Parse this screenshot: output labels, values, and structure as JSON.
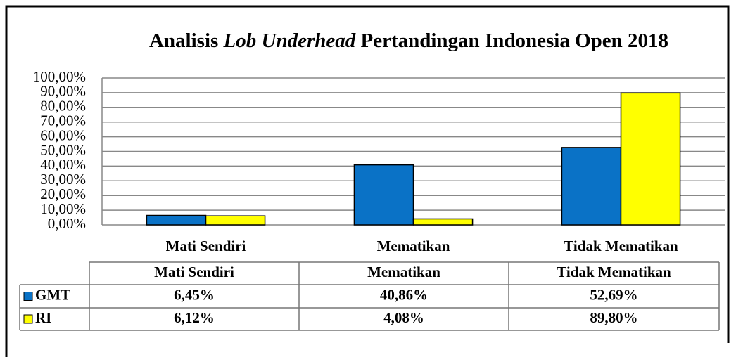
{
  "chart_data": {
    "type": "bar",
    "title": "Analisis Lob Underhead Pertandingan Indonesia Open 2018",
    "title_emphasis": "Lob Underhead",
    "categories": [
      "Mati Sendiri",
      "Mematikan",
      "Tidak Mematikan"
    ],
    "series": [
      {
        "name": "GMT",
        "color": "#0a72c6",
        "values": [
          6.45,
          40.86,
          52.69
        ],
        "value_labels": [
          "6,45%",
          "40,86%",
          "52,69%"
        ]
      },
      {
        "name": "RI",
        "color": "#ffff00",
        "values": [
          6.12,
          4.08,
          89.8
        ],
        "value_labels": [
          "6,12%",
          "4,08%",
          "89,80%"
        ]
      }
    ],
    "ylim": [
      0,
      100
    ],
    "yticks": [
      {
        "value": 0,
        "label": "0,00%"
      },
      {
        "value": 10,
        "label": "10,00%"
      },
      {
        "value": 20,
        "label": "20,00%"
      },
      {
        "value": 30,
        "label": "30,00%"
      },
      {
        "value": 40,
        "label": "40,00%"
      },
      {
        "value": 50,
        "label": "50,00%"
      },
      {
        "value": 60,
        "label": "60,00%"
      },
      {
        "value": 70,
        "label": "70,00%"
      },
      {
        "value": 80,
        "label": "80,00%"
      },
      {
        "value": 90,
        "label": "90,00%"
      },
      {
        "value": 100,
        "label": "100,00%"
      }
    ],
    "grid": true
  }
}
